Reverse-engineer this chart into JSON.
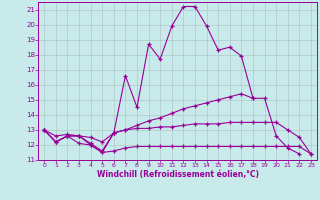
{
  "xlabel": "Windchill (Refroidissement éolien,°C)",
  "background_color": "#c8eaea",
  "grid_color": "#b0c8c8",
  "line_color": "#990099",
  "xlim": [
    -0.5,
    23.5
  ],
  "ylim": [
    11,
    21.5
  ],
  "xticks": [
    0,
    1,
    2,
    3,
    4,
    5,
    6,
    7,
    8,
    9,
    10,
    11,
    12,
    13,
    14,
    15,
    16,
    17,
    18,
    19,
    20,
    21,
    22,
    23
  ],
  "yticks": [
    11,
    12,
    13,
    14,
    15,
    16,
    17,
    18,
    19,
    20,
    21
  ],
  "lines": [
    {
      "x": [
        0,
        1,
        2,
        3,
        4,
        5,
        6,
        7,
        8,
        9,
        10,
        11,
        12,
        13,
        14,
        15,
        16,
        17,
        18,
        19,
        20,
        21,
        22,
        23
      ],
      "y": [
        13,
        12.2,
        12.6,
        12.6,
        12.0,
        11.5,
        12.8,
        16.6,
        14.5,
        18.7,
        17.7,
        19.9,
        21.2,
        21.2,
        19.9,
        18.3,
        18.5,
        17.9,
        15.1,
        15.1,
        12.6,
        11.8,
        11.4,
        null
      ]
    },
    {
      "x": [
        0,
        1,
        2,
        3,
        4,
        5,
        6,
        7,
        8,
        9,
        10,
        11,
        12,
        13,
        14,
        15,
        16,
        17,
        18,
        19,
        20,
        21,
        22,
        23
      ],
      "y": [
        13,
        12.2,
        12.6,
        12.6,
        12.1,
        11.6,
        12.8,
        13.0,
        13.3,
        13.6,
        13.8,
        14.1,
        14.4,
        14.6,
        14.8,
        15.0,
        15.2,
        15.4,
        15.1,
        null,
        null,
        null,
        null,
        null
      ]
    },
    {
      "x": [
        0,
        1,
        2,
        3,
        4,
        5,
        6,
        7,
        8,
        9,
        10,
        11,
        12,
        13,
        14,
        15,
        16,
        17,
        18,
        19,
        20,
        21,
        22,
        23
      ],
      "y": [
        13,
        12.6,
        12.7,
        12.6,
        12.5,
        12.2,
        12.8,
        13.0,
        13.1,
        13.1,
        13.2,
        13.2,
        13.3,
        13.4,
        13.4,
        13.4,
        13.5,
        13.5,
        13.5,
        13.5,
        13.5,
        13.0,
        12.5,
        11.4
      ]
    },
    {
      "x": [
        0,
        1,
        2,
        3,
        4,
        5,
        6,
        7,
        8,
        9,
        10,
        11,
        12,
        13,
        14,
        15,
        16,
        17,
        18,
        19,
        20,
        21,
        22,
        23
      ],
      "y": [
        13,
        12.2,
        12.6,
        12.1,
        12.0,
        11.5,
        11.6,
        11.8,
        11.9,
        11.9,
        11.9,
        11.9,
        11.9,
        11.9,
        11.9,
        11.9,
        11.9,
        11.9,
        11.9,
        11.9,
        11.9,
        11.9,
        11.9,
        11.4
      ]
    }
  ]
}
